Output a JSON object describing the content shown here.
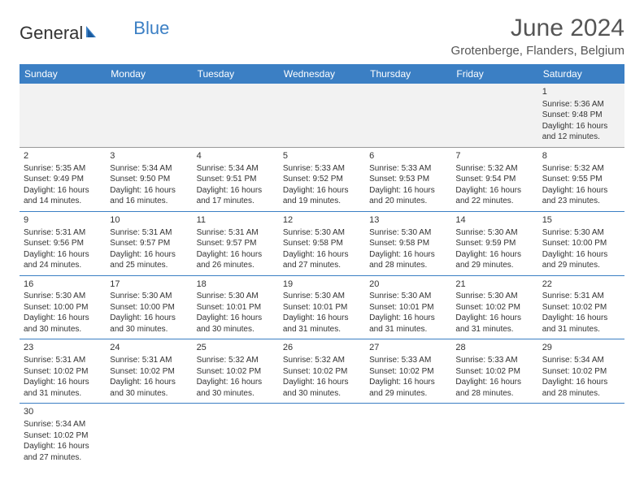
{
  "logo": {
    "text1": "General",
    "text2": "Blue"
  },
  "title": "June 2024",
  "location": "Grotenberge, Flanders, Belgium",
  "colors": {
    "header_bg": "#3b7fc4",
    "header_text": "#ffffff",
    "row_divider": "#3b7fc4",
    "first_row_bg": "#f2f2f2",
    "text": "#333333"
  },
  "day_headers": [
    "Sunday",
    "Monday",
    "Tuesday",
    "Wednesday",
    "Thursday",
    "Friday",
    "Saturday"
  ],
  "weeks": [
    [
      null,
      null,
      null,
      null,
      null,
      null,
      {
        "n": "1",
        "sunrise": "Sunrise: 5:36 AM",
        "sunset": "Sunset: 9:48 PM",
        "day1": "Daylight: 16 hours",
        "day2": "and 12 minutes."
      }
    ],
    [
      {
        "n": "2",
        "sunrise": "Sunrise: 5:35 AM",
        "sunset": "Sunset: 9:49 PM",
        "day1": "Daylight: 16 hours",
        "day2": "and 14 minutes."
      },
      {
        "n": "3",
        "sunrise": "Sunrise: 5:34 AM",
        "sunset": "Sunset: 9:50 PM",
        "day1": "Daylight: 16 hours",
        "day2": "and 16 minutes."
      },
      {
        "n": "4",
        "sunrise": "Sunrise: 5:34 AM",
        "sunset": "Sunset: 9:51 PM",
        "day1": "Daylight: 16 hours",
        "day2": "and 17 minutes."
      },
      {
        "n": "5",
        "sunrise": "Sunrise: 5:33 AM",
        "sunset": "Sunset: 9:52 PM",
        "day1": "Daylight: 16 hours",
        "day2": "and 19 minutes."
      },
      {
        "n": "6",
        "sunrise": "Sunrise: 5:33 AM",
        "sunset": "Sunset: 9:53 PM",
        "day1": "Daylight: 16 hours",
        "day2": "and 20 minutes."
      },
      {
        "n": "7",
        "sunrise": "Sunrise: 5:32 AM",
        "sunset": "Sunset: 9:54 PM",
        "day1": "Daylight: 16 hours",
        "day2": "and 22 minutes."
      },
      {
        "n": "8",
        "sunrise": "Sunrise: 5:32 AM",
        "sunset": "Sunset: 9:55 PM",
        "day1": "Daylight: 16 hours",
        "day2": "and 23 minutes."
      }
    ],
    [
      {
        "n": "9",
        "sunrise": "Sunrise: 5:31 AM",
        "sunset": "Sunset: 9:56 PM",
        "day1": "Daylight: 16 hours",
        "day2": "and 24 minutes."
      },
      {
        "n": "10",
        "sunrise": "Sunrise: 5:31 AM",
        "sunset": "Sunset: 9:57 PM",
        "day1": "Daylight: 16 hours",
        "day2": "and 25 minutes."
      },
      {
        "n": "11",
        "sunrise": "Sunrise: 5:31 AM",
        "sunset": "Sunset: 9:57 PM",
        "day1": "Daylight: 16 hours",
        "day2": "and 26 minutes."
      },
      {
        "n": "12",
        "sunrise": "Sunrise: 5:30 AM",
        "sunset": "Sunset: 9:58 PM",
        "day1": "Daylight: 16 hours",
        "day2": "and 27 minutes."
      },
      {
        "n": "13",
        "sunrise": "Sunrise: 5:30 AM",
        "sunset": "Sunset: 9:58 PM",
        "day1": "Daylight: 16 hours",
        "day2": "and 28 minutes."
      },
      {
        "n": "14",
        "sunrise": "Sunrise: 5:30 AM",
        "sunset": "Sunset: 9:59 PM",
        "day1": "Daylight: 16 hours",
        "day2": "and 29 minutes."
      },
      {
        "n": "15",
        "sunrise": "Sunrise: 5:30 AM",
        "sunset": "Sunset: 10:00 PM",
        "day1": "Daylight: 16 hours",
        "day2": "and 29 minutes."
      }
    ],
    [
      {
        "n": "16",
        "sunrise": "Sunrise: 5:30 AM",
        "sunset": "Sunset: 10:00 PM",
        "day1": "Daylight: 16 hours",
        "day2": "and 30 minutes."
      },
      {
        "n": "17",
        "sunrise": "Sunrise: 5:30 AM",
        "sunset": "Sunset: 10:00 PM",
        "day1": "Daylight: 16 hours",
        "day2": "and 30 minutes."
      },
      {
        "n": "18",
        "sunrise": "Sunrise: 5:30 AM",
        "sunset": "Sunset: 10:01 PM",
        "day1": "Daylight: 16 hours",
        "day2": "and 30 minutes."
      },
      {
        "n": "19",
        "sunrise": "Sunrise: 5:30 AM",
        "sunset": "Sunset: 10:01 PM",
        "day1": "Daylight: 16 hours",
        "day2": "and 31 minutes."
      },
      {
        "n": "20",
        "sunrise": "Sunrise: 5:30 AM",
        "sunset": "Sunset: 10:01 PM",
        "day1": "Daylight: 16 hours",
        "day2": "and 31 minutes."
      },
      {
        "n": "21",
        "sunrise": "Sunrise: 5:30 AM",
        "sunset": "Sunset: 10:02 PM",
        "day1": "Daylight: 16 hours",
        "day2": "and 31 minutes."
      },
      {
        "n": "22",
        "sunrise": "Sunrise: 5:31 AM",
        "sunset": "Sunset: 10:02 PM",
        "day1": "Daylight: 16 hours",
        "day2": "and 31 minutes."
      }
    ],
    [
      {
        "n": "23",
        "sunrise": "Sunrise: 5:31 AM",
        "sunset": "Sunset: 10:02 PM",
        "day1": "Daylight: 16 hours",
        "day2": "and 31 minutes."
      },
      {
        "n": "24",
        "sunrise": "Sunrise: 5:31 AM",
        "sunset": "Sunset: 10:02 PM",
        "day1": "Daylight: 16 hours",
        "day2": "and 30 minutes."
      },
      {
        "n": "25",
        "sunrise": "Sunrise: 5:32 AM",
        "sunset": "Sunset: 10:02 PM",
        "day1": "Daylight: 16 hours",
        "day2": "and 30 minutes."
      },
      {
        "n": "26",
        "sunrise": "Sunrise: 5:32 AM",
        "sunset": "Sunset: 10:02 PM",
        "day1": "Daylight: 16 hours",
        "day2": "and 30 minutes."
      },
      {
        "n": "27",
        "sunrise": "Sunrise: 5:33 AM",
        "sunset": "Sunset: 10:02 PM",
        "day1": "Daylight: 16 hours",
        "day2": "and 29 minutes."
      },
      {
        "n": "28",
        "sunrise": "Sunrise: 5:33 AM",
        "sunset": "Sunset: 10:02 PM",
        "day1": "Daylight: 16 hours",
        "day2": "and 28 minutes."
      },
      {
        "n": "29",
        "sunrise": "Sunrise: 5:34 AM",
        "sunset": "Sunset: 10:02 PM",
        "day1": "Daylight: 16 hours",
        "day2": "and 28 minutes."
      }
    ],
    [
      {
        "n": "30",
        "sunrise": "Sunrise: 5:34 AM",
        "sunset": "Sunset: 10:02 PM",
        "day1": "Daylight: 16 hours",
        "day2": "and 27 minutes."
      },
      null,
      null,
      null,
      null,
      null,
      null
    ]
  ]
}
